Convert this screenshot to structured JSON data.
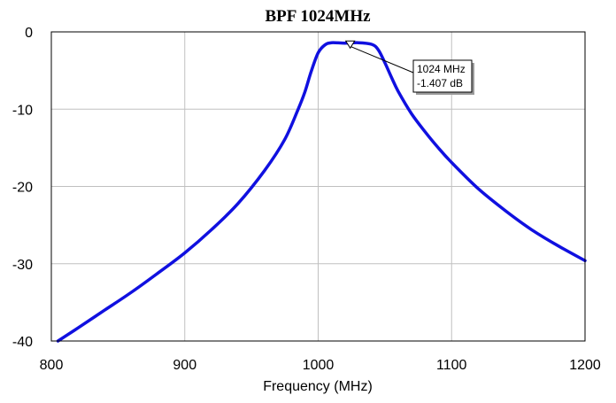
{
  "chart_data": {
    "type": "line",
    "title": "BPF 1024MHz",
    "xlabel": "Frequency (MHz)",
    "ylabel": "",
    "xlim": [
      800,
      1200
    ],
    "ylim": [
      -40,
      0
    ],
    "x_ticks": [
      800,
      900,
      1000,
      1100,
      1200
    ],
    "y_ticks": [
      0,
      -10,
      -20,
      -30,
      -40
    ],
    "grid": true,
    "series": [
      {
        "color": "#1010e0",
        "points": [
          [
            805,
            -40
          ],
          [
            820,
            -38.3
          ],
          [
            840,
            -36.0
          ],
          [
            860,
            -33.7
          ],
          [
            880,
            -31.2
          ],
          [
            900,
            -28.6
          ],
          [
            920,
            -25.6
          ],
          [
            940,
            -22.2
          ],
          [
            960,
            -17.9
          ],
          [
            975,
            -13.9
          ],
          [
            985,
            -10.0
          ],
          [
            990,
            -7.8
          ],
          [
            995,
            -5.0
          ],
          [
            1000,
            -2.7
          ],
          [
            1005,
            -1.7
          ],
          [
            1010,
            -1.4
          ],
          [
            1020,
            -1.45
          ],
          [
            1030,
            -1.4
          ],
          [
            1040,
            -1.6
          ],
          [
            1045,
            -2.3
          ],
          [
            1050,
            -4.0
          ],
          [
            1055,
            -5.9
          ],
          [
            1060,
            -7.7
          ],
          [
            1070,
            -10.6
          ],
          [
            1080,
            -12.9
          ],
          [
            1090,
            -15.0
          ],
          [
            1100,
            -16.9
          ],
          [
            1120,
            -20.3
          ],
          [
            1140,
            -23.1
          ],
          [
            1160,
            -25.6
          ],
          [
            1180,
            -27.7
          ],
          [
            1200,
            -29.6
          ]
        ]
      }
    ],
    "marker": {
      "x": 1024,
      "y": -1.407,
      "label_freq": "1024 MHz",
      "label_value": "-1.407 dB"
    }
  }
}
